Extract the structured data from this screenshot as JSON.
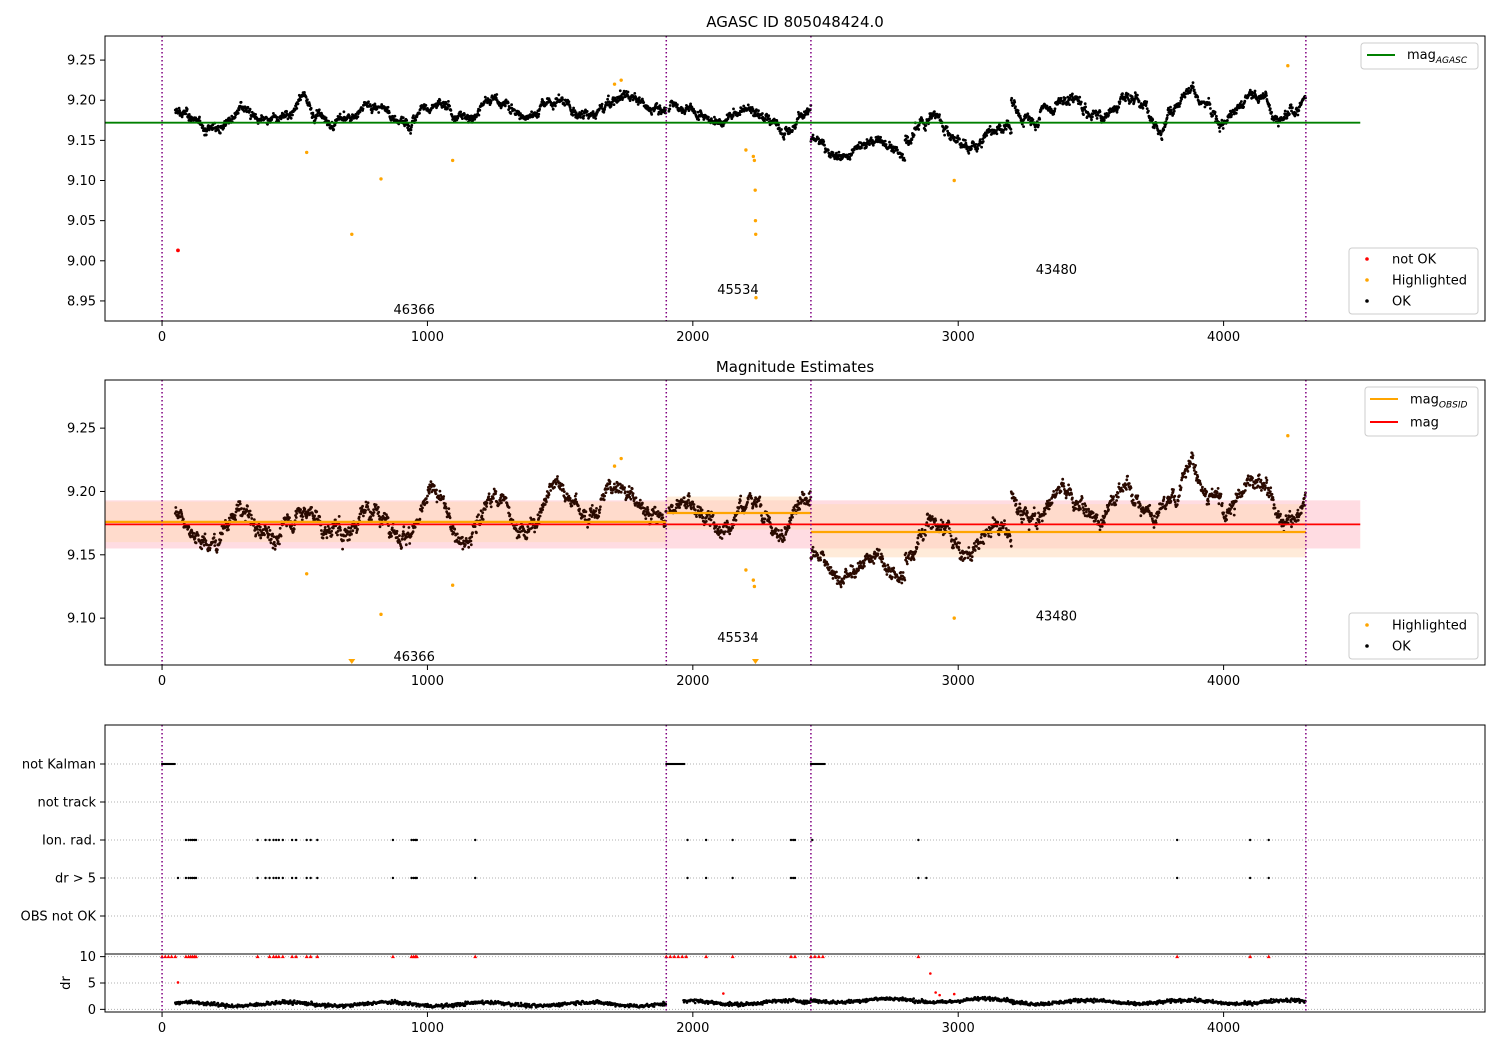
{
  "chart_data": [
    {
      "type": "scatter",
      "title": "AGASC ID 805048424.0",
      "xlim": [
        -215,
        4985
      ],
      "ylim": [
        8.925,
        9.28
      ],
      "x_ticks": [
        0,
        1000,
        2000,
        3000,
        4000
      ],
      "x_tick_labels": [
        "0",
        "1000",
        "2000",
        "3000",
        "4000"
      ],
      "y_ticks": [
        8.95,
        9.0,
        9.05,
        9.1,
        9.15,
        9.2,
        9.25
      ],
      "y_tick_labels": [
        "8.95",
        "9.00",
        "9.05",
        "9.10",
        "9.15",
        "9.20",
        "9.25"
      ],
      "obs_boundaries": [
        0,
        1900,
        2445,
        4310
      ],
      "obsid_labels": [
        {
          "text": "46366",
          "x": 950,
          "y": 8.94
        },
        {
          "text": "45534",
          "x": 2170,
          "y": 8.965
        },
        {
          "text": "43480",
          "x": 3370,
          "y": 8.99
        }
      ],
      "mag_agasc": 9.172,
      "mag_agasc_xrange": [
        -215,
        4515
      ],
      "ok_segments": [
        {
          "x0": 50,
          "x1": 1900,
          "y0": 9.172,
          "y1": 9.195,
          "amp": 0.02
        },
        {
          "x0": 1910,
          "x1": 2445,
          "y0": 9.185,
          "y1": 9.183,
          "amp": 0.018
        },
        {
          "x0": 2445,
          "x1": 2800,
          "y0": 9.14,
          "y1": 9.14,
          "amp": 0.014
        },
        {
          "x0": 2800,
          "x1": 3200,
          "y0": 9.165,
          "y1": 9.16,
          "amp": 0.022
        },
        {
          "x0": 3200,
          "x1": 4310,
          "y0": 9.19,
          "y1": 9.2,
          "amp": 0.022
        }
      ],
      "not_ok_points": [
        {
          "x": 60,
          "y": 9.013
        }
      ],
      "highlighted_points": [
        {
          "x": 545,
          "y": 9.135
        },
        {
          "x": 715,
          "y": 9.033
        },
        {
          "x": 825,
          "y": 9.102
        },
        {
          "x": 1095,
          "y": 9.125
        },
        {
          "x": 1705,
          "y": 9.22
        },
        {
          "x": 1730,
          "y": 9.225
        },
        {
          "x": 2200,
          "y": 9.138
        },
        {
          "x": 2228,
          "y": 9.13
        },
        {
          "x": 2232,
          "y": 9.125
        },
        {
          "x": 2235,
          "y": 9.088
        },
        {
          "x": 2236,
          "y": 9.05
        },
        {
          "x": 2237,
          "y": 9.033
        },
        {
          "x": 2238,
          "y": 8.954
        },
        {
          "x": 2985,
          "y": 9.1
        },
        {
          "x": 4242,
          "y": 9.243
        }
      ],
      "legend_top": [
        {
          "label": "mag",
          "sub": "AGASC",
          "color": "#008000"
        }
      ],
      "legend_bottom": [
        {
          "label": "not OK",
          "color": "#ff0000"
        },
        {
          "label": "Highlighted",
          "color": "#ffa500"
        },
        {
          "label": "OK",
          "color": "#000000"
        }
      ],
      "legend_placement": "top-right / bottom-right"
    },
    {
      "type": "scatter",
      "title": "Magnitude Estimates",
      "xlim": [
        -215,
        4985
      ],
      "ylim": [
        9.063,
        9.288
      ],
      "x_ticks": [
        0,
        1000,
        2000,
        3000,
        4000
      ],
      "x_tick_labels": [
        "0",
        "1000",
        "2000",
        "3000",
        "4000"
      ],
      "y_ticks": [
        9.1,
        9.15,
        9.2,
        9.25
      ],
      "y_tick_labels": [
        "9.10",
        "9.15",
        "9.20",
        "9.25"
      ],
      "obs_boundaries": [
        0,
        1900,
        2445,
        4310
      ],
      "obsid_labels": [
        {
          "text": "46366",
          "x": 950,
          "y": 9.07
        },
        {
          "text": "45534",
          "x": 2170,
          "y": 9.085
        },
        {
          "text": "43480",
          "x": 3370,
          "y": 9.102
        }
      ],
      "mag": {
        "value": 9.174,
        "lo": 9.155,
        "hi": 9.193,
        "xrange": [
          -215,
          4515
        ]
      },
      "mag_obsid": [
        {
          "x0": -215,
          "x1": 1900,
          "value": 9.176,
          "lo": 9.16,
          "hi": 9.192
        },
        {
          "x0": 1900,
          "x1": 2445,
          "value": 9.183,
          "lo": 9.17,
          "hi": 9.196
        },
        {
          "x0": 2445,
          "x1": 4310,
          "value": 9.168,
          "lo": 9.148,
          "hi": 9.19
        }
      ],
      "highlighted_points": [
        {
          "x": 545,
          "y": 9.135
        },
        {
          "x": 825,
          "y": 9.103
        },
        {
          "x": 1095,
          "y": 9.126
        },
        {
          "x": 1705,
          "y": 9.22
        },
        {
          "x": 1730,
          "y": 9.226
        },
        {
          "x": 2200,
          "y": 9.138
        },
        {
          "x": 2228,
          "y": 9.13
        },
        {
          "x": 2232,
          "y": 9.125
        },
        {
          "x": 2985,
          "y": 9.1
        },
        {
          "x": 4242,
          "y": 9.244
        }
      ],
      "out_of_range_markers": [
        {
          "x": 715
        },
        {
          "x": 2236
        }
      ],
      "legend_top": [
        {
          "label": "mag",
          "sub": "OBSID",
          "color": "#ffa500"
        },
        {
          "label": "mag",
          "sub": "",
          "color": "#ff0000"
        }
      ],
      "legend_bottom": [
        {
          "label": "Highlighted",
          "color": "#ffa500"
        },
        {
          "label": "OK",
          "color": "#000000"
        }
      ],
      "legend_placement": "top-right / bottom-right"
    },
    {
      "type": "scatter",
      "title": "",
      "xlim": [
        -215,
        4985
      ],
      "flag_rows": [
        "not Kalman",
        "not track",
        "Ion. rad.",
        "dr > 5",
        "OBS not OK"
      ],
      "obs_boundaries": [
        0,
        1900,
        2445,
        4310
      ],
      "flags": {
        "not Kalman": [
          [
            0,
            50
          ],
          [
            1900,
            1970
          ],
          [
            2445,
            2500
          ]
        ],
        "not track": [],
        "Ion. rad.": [
          90,
          100,
          108,
          115,
          122,
          128,
          360,
          390,
          405,
          420,
          430,
          440,
          455,
          490,
          505,
          545,
          560,
          585,
          870,
          940,
          948,
          955,
          960,
          1180,
          1980,
          2050,
          2150,
          2370,
          2378,
          2385,
          2450,
          2850,
          3825,
          4100,
          4170
        ],
        "dr > 5": [
          60,
          90,
          100,
          108,
          115,
          122,
          128,
          360,
          390,
          405,
          420,
          430,
          440,
          455,
          490,
          505,
          545,
          560,
          585,
          870,
          940,
          948,
          955,
          960,
          1180,
          1980,
          2050,
          2150,
          2370,
          2378,
          2385,
          2850,
          2880,
          3825,
          4100,
          4170
        ],
        "OBS not OK": []
      },
      "dr": {
        "ylabel": "dr",
        "ylim": [
          -0.5,
          10.5
        ],
        "y_ticks": [
          0,
          5,
          10
        ],
        "y_tick_labels": [
          "0",
          "5",
          "10"
        ],
        "x_ticks": [
          0,
          1000,
          2000,
          3000,
          4000
        ],
        "x_tick_labels": [
          "0",
          "1000",
          "2000",
          "3000",
          "4000"
        ],
        "base_segments": [
          {
            "x0": 50,
            "x1": 1900,
            "level": 1.0
          },
          {
            "x0": 1965,
            "x1": 2445,
            "level": 1.3
          },
          {
            "x0": 2445,
            "x1": 3200,
            "level": 1.7
          },
          {
            "x0": 3200,
            "x1": 4310,
            "level": 1.4
          }
        ],
        "clipped_markers": [
          0,
          12,
          24,
          36,
          50,
          90,
          100,
          108,
          115,
          122,
          128,
          360,
          405,
          420,
          430,
          440,
          455,
          490,
          505,
          545,
          560,
          585,
          870,
          940,
          948,
          955,
          960,
          1180,
          1900,
          1915,
          1930,
          1945,
          1960,
          1975,
          2050,
          2150,
          2370,
          2385,
          2445,
          2460,
          2475,
          2490,
          2850,
          3825,
          4100,
          4170
        ],
        "red_points": [
          {
            "x": 60,
            "y": 5.1
          },
          {
            "x": 2115,
            "y": 3.0
          },
          {
            "x": 2895,
            "y": 6.8
          },
          {
            "x": 2915,
            "y": 3.2
          },
          {
            "x": 2930,
            "y": 2.7
          },
          {
            "x": 2985,
            "y": 2.9
          }
        ]
      }
    }
  ],
  "colors": {
    "ok": "#000000",
    "highlighted": "#ffa500",
    "not_ok": "#ff0000",
    "mag_agasc": "#008000",
    "mag_obsid": "#ffa500",
    "mag": "#ff0000",
    "obs_boundary": "#800080",
    "mag_band": "#ffc0cb",
    "obsid_band": "#ffdab9"
  }
}
